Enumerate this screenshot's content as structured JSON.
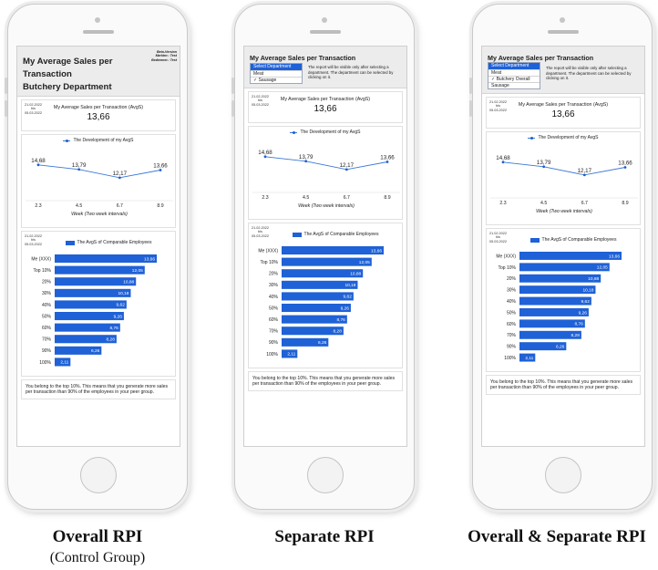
{
  "beta_lines": [
    "Beta-Version",
    "Marktnr.: Test",
    "Bedienner.: Test"
  ],
  "phones": [
    {
      "title_lines": [
        "My Average Sales per",
        "Transaction",
        "Butchery Department"
      ],
      "dept_options": [],
      "dept_note": "",
      "caption": "Overall RPI",
      "caption_sub": "(Control Group)"
    },
    {
      "title_lines": [
        "My Average Sales per Transaction"
      ],
      "dept_options": [
        {
          "label": "Select Department",
          "selected": true
        },
        {
          "label": "Meat",
          "selected": false
        },
        {
          "label": "✓ Sausage",
          "selected": false
        }
      ],
      "dept_note": "The report will be visible only after selecting a department. The department can be selected by clicking on it.",
      "caption": "Separate RPI",
      "caption_sub": ""
    },
    {
      "title_lines": [
        "My Average Sales per Transaction"
      ],
      "dept_options": [
        {
          "label": "Select Department",
          "selected": true
        },
        {
          "label": "Meat",
          "selected": false
        },
        {
          "label": "✓ Butchery Overall",
          "selected": false
        },
        {
          "label": "Sausage",
          "selected": false
        }
      ],
      "dept_note": "The report will be visible only after selecting a department. The department can be selected by clicking on it.",
      "caption": "Overall & Separate RPI",
      "caption_sub": ""
    }
  ],
  "date_range": [
    "21.02.2022",
    "bis",
    "05.03.2022"
  ],
  "kpi": {
    "label": "My Average Sales per Transaction (AvgS)",
    "value": "13,66"
  },
  "line_chart": {
    "legend": "The Development of my AvgS",
    "xlabel": "Week (Two week intervals)",
    "categories": [
      "2.3",
      "4.5",
      "6.7",
      "8.9"
    ],
    "values": [
      14.68,
      13.79,
      12.17,
      13.66
    ],
    "labels": [
      "14,68",
      "13,79",
      "12,17",
      "13,66"
    ],
    "color": "#3b78d8"
  },
  "bar_chart": {
    "legend": "The AvgS of Comparable Employees",
    "categories": [
      "Me (XXX)",
      "Top 10%",
      "20%",
      "30%",
      "40%",
      "50%",
      "60%",
      "70%",
      "90%",
      "100%"
    ],
    "values": [
      13.66,
      12.05,
      10.88,
      10.18,
      9.62,
      9.26,
      8.76,
      8.28,
      6.26,
      2.11
    ],
    "labels": [
      "13,66",
      "12,05",
      "10,88",
      "10,18",
      "9,62",
      "9,26",
      "8,76",
      "8,28",
      "6,26",
      "2,11"
    ],
    "color": "#1f61d6"
  },
  "note": "You belong to the top 10%. This means that you generate more sales per transaction than 90% of the employees in your peer group."
}
